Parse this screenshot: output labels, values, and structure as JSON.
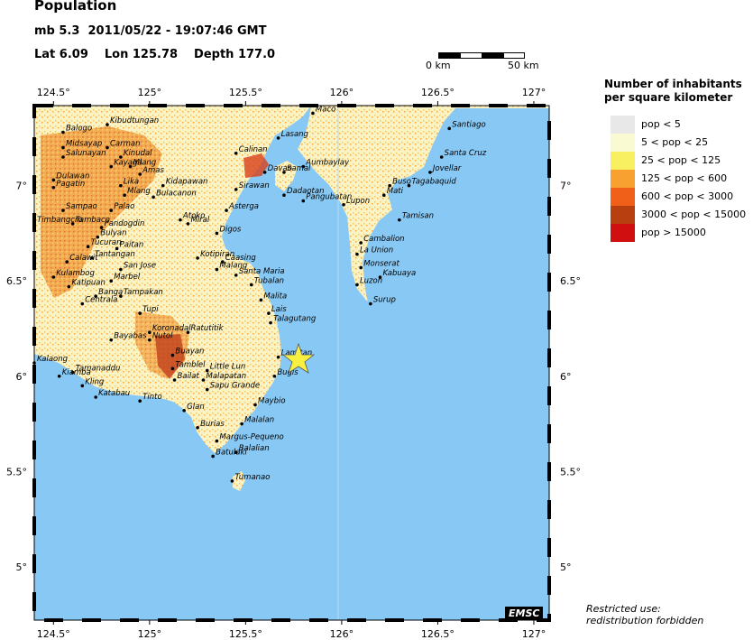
{
  "header": {
    "title": "Population",
    "magnitude": "mb 5.3",
    "datetime": "2011/05/22 - 19:07:46 GMT",
    "lat": "Lat  6.09",
    "lon": "Lon 125.78",
    "depth": "Depth 177.0"
  },
  "scale": {
    "start": "0 km",
    "end": "50 km"
  },
  "axes": {
    "lon_ticks": [
      "124.5°",
      "125°",
      "125.5°",
      "126°",
      "126.5°",
      "127°"
    ],
    "lat_ticks": [
      "7°",
      "6.5°",
      "6°",
      "5.5°",
      "5°"
    ]
  },
  "legend": {
    "title_line1": "Number of inhabitants",
    "title_line2": "per square kilometer",
    "items": [
      {
        "label": "pop < 5",
        "color": "#e8e8e8"
      },
      {
        "label": "5 < pop < 25",
        "color": "#fafad2"
      },
      {
        "label": "25 < pop < 125",
        "color": "#f8f060"
      },
      {
        "label": "125 < pop < 600",
        "color": "#f8a030"
      },
      {
        "label": "600 < pop < 3000",
        "color": "#f06018"
      },
      {
        "label": "3000 < pop < 15000",
        "color": "#b84010"
      },
      {
        "label": "pop > 15000",
        "color": "#d01010"
      }
    ]
  },
  "cities": [
    {
      "name": "Balogo",
      "lon": 124.55,
      "lat": 7.28
    },
    {
      "name": "Kibudtungan",
      "lon": 124.78,
      "lat": 7.32
    },
    {
      "name": "Midsayap",
      "lon": 124.55,
      "lat": 7.2
    },
    {
      "name": "Carman",
      "lon": 124.78,
      "lat": 7.2
    },
    {
      "name": "Salunayan",
      "lon": 124.55,
      "lat": 7.15
    },
    {
      "name": "Kinudal",
      "lon": 124.85,
      "lat": 7.15
    },
    {
      "name": "Kayaga",
      "lon": 124.8,
      "lat": 7.1
    },
    {
      "name": "Mlang",
      "lon": 124.9,
      "lat": 7.1
    },
    {
      "name": "Amas",
      "lon": 124.95,
      "lat": 7.06
    },
    {
      "name": "Calinan",
      "lon": 125.45,
      "lat": 7.17
    },
    {
      "name": "Lasang",
      "lon": 125.67,
      "lat": 7.25
    },
    {
      "name": "Maco",
      "lon": 125.85,
      "lat": 7.38
    },
    {
      "name": "Dulawan",
      "lon": 124.5,
      "lat": 7.03
    },
    {
      "name": "Pagatin",
      "lon": 124.5,
      "lat": 6.99
    },
    {
      "name": "Lika",
      "lon": 124.85,
      "lat": 7.0
    },
    {
      "name": "Kidapawan",
      "lon": 125.07,
      "lat": 7.0
    },
    {
      "name": "Mlang",
      "lon": 124.87,
      "lat": 6.95
    },
    {
      "name": "Bulacanon",
      "lon": 125.02,
      "lat": 6.94
    },
    {
      "name": "Davao",
      "lon": 125.6,
      "lat": 7.07
    },
    {
      "name": "Samal",
      "lon": 125.7,
      "lat": 7.07
    },
    {
      "name": "Aumbaylay",
      "lon": 125.8,
      "lat": 7.1
    },
    {
      "name": "Sirawan",
      "lon": 125.45,
      "lat": 6.98
    },
    {
      "name": "Dadaotan",
      "lon": 125.7,
      "lat": 6.95
    },
    {
      "name": "Pangubatan",
      "lon": 125.8,
      "lat": 6.92
    },
    {
      "name": "Lupon",
      "lon": 126.01,
      "lat": 6.9
    },
    {
      "name": "Mati",
      "lon": 126.22,
      "lat": 6.95
    },
    {
      "name": "Buso",
      "lon": 126.25,
      "lat": 7.0
    },
    {
      "name": "Tagabaquid",
      "lon": 126.35,
      "lat": 7.0
    },
    {
      "name": "Jovellar",
      "lon": 126.46,
      "lat": 7.07
    },
    {
      "name": "Santa Cruz",
      "lon": 126.52,
      "lat": 7.15
    },
    {
      "name": "Santiago",
      "lon": 126.56,
      "lat": 7.3
    },
    {
      "name": "Sampao",
      "lon": 124.55,
      "lat": 6.87
    },
    {
      "name": "Palao",
      "lon": 124.8,
      "lat": 6.87
    },
    {
      "name": "Asterga",
      "lon": 125.4,
      "lat": 6.87
    },
    {
      "name": "Timbangcro",
      "lon": 124.4,
      "lat": 6.8
    },
    {
      "name": "Tambaco",
      "lon": 124.6,
      "lat": 6.8
    },
    {
      "name": "Pandogdin",
      "lon": 124.75,
      "lat": 6.78
    },
    {
      "name": "Atoko",
      "lon": 125.16,
      "lat": 6.82
    },
    {
      "name": "Miral",
      "lon": 125.2,
      "lat": 6.8
    },
    {
      "name": "Digos",
      "lon": 125.35,
      "lat": 6.75
    },
    {
      "name": "Tamisan",
      "lon": 126.3,
      "lat": 6.82
    },
    {
      "name": "Bulyan",
      "lon": 124.73,
      "lat": 6.73
    },
    {
      "name": "Tucuran",
      "lon": 124.68,
      "lat": 6.68
    },
    {
      "name": "Paitan",
      "lon": 124.83,
      "lat": 6.67
    },
    {
      "name": "Cambalion",
      "lon": 126.1,
      "lat": 6.7
    },
    {
      "name": "La Union",
      "lon": 126.08,
      "lat": 6.64
    },
    {
      "name": "Tantangan",
      "lon": 124.7,
      "lat": 6.62
    },
    {
      "name": "Kotipiran",
      "lon": 125.25,
      "lat": 6.62
    },
    {
      "name": "Calawit",
      "lon": 124.57,
      "lat": 6.6
    },
    {
      "name": "Caasing",
      "lon": 125.38,
      "lat": 6.6
    },
    {
      "name": "Malang",
      "lon": 125.35,
      "lat": 6.56
    },
    {
      "name": "Santa Maria",
      "lon": 125.45,
      "lat": 6.53
    },
    {
      "name": "San Jose",
      "lon": 124.85,
      "lat": 6.56
    },
    {
      "name": "Monserat",
      "lon": 126.1,
      "lat": 6.57
    },
    {
      "name": "Kulambog",
      "lon": 124.5,
      "lat": 6.52
    },
    {
      "name": "Marbel",
      "lon": 124.8,
      "lat": 6.5
    },
    {
      "name": "Kabuaya",
      "lon": 126.2,
      "lat": 6.52
    },
    {
      "name": "Tubalan",
      "lon": 125.53,
      "lat": 6.48
    },
    {
      "name": "Katipuan",
      "lon": 124.58,
      "lat": 6.47
    },
    {
      "name": "Luzon",
      "lon": 126.08,
      "lat": 6.48
    },
    {
      "name": "Banga",
      "lon": 124.72,
      "lat": 6.42
    },
    {
      "name": "Tampakan",
      "lon": 124.85,
      "lat": 6.42
    },
    {
      "name": "Centrala",
      "lon": 124.65,
      "lat": 6.38
    },
    {
      "name": "Malita",
      "lon": 125.58,
      "lat": 6.4
    },
    {
      "name": "Tupi",
      "lon": 124.95,
      "lat": 6.33
    },
    {
      "name": "Surup",
      "lon": 126.15,
      "lat": 6.38
    },
    {
      "name": "Lais",
      "lon": 125.62,
      "lat": 6.33
    },
    {
      "name": "Talagutang",
      "lon": 125.63,
      "lat": 6.28
    },
    {
      "name": "Koronadal",
      "lon": 125.0,
      "lat": 6.23
    },
    {
      "name": "Ratutitik",
      "lon": 125.2,
      "lat": 6.23
    },
    {
      "name": "Nutol",
      "lon": 125.0,
      "lat": 6.19
    },
    {
      "name": "Bayabas",
      "lon": 124.8,
      "lat": 6.19
    },
    {
      "name": "Buayan",
      "lon": 125.12,
      "lat": 6.11
    },
    {
      "name": "Lamitan",
      "lon": 125.67,
      "lat": 6.1
    },
    {
      "name": "Kalaong",
      "lon": 124.4,
      "lat": 6.07
    },
    {
      "name": "Tamblel",
      "lon": 125.12,
      "lat": 6.04
    },
    {
      "name": "Little Lun",
      "lon": 125.3,
      "lat": 6.03
    },
    {
      "name": "Bugis",
      "lon": 125.65,
      "lat": 6.0
    },
    {
      "name": "Tamanaddu",
      "lon": 124.6,
      "lat": 6.02
    },
    {
      "name": "Kiamba",
      "lon": 124.53,
      "lat": 6.0
    },
    {
      "name": "Bailat",
      "lon": 125.13,
      "lat": 5.98
    },
    {
      "name": "Malapatan",
      "lon": 125.28,
      "lat": 5.98
    },
    {
      "name": "Kling",
      "lon": 124.65,
      "lat": 5.95
    },
    {
      "name": "Sapu Grande",
      "lon": 125.3,
      "lat": 5.93
    },
    {
      "name": "Katabau",
      "lon": 124.72,
      "lat": 5.89
    },
    {
      "name": "Tinto",
      "lon": 124.95,
      "lat": 5.87
    },
    {
      "name": "Maybio",
      "lon": 125.55,
      "lat": 5.85
    },
    {
      "name": "Glan",
      "lon": 125.18,
      "lat": 5.82
    },
    {
      "name": "Malalan",
      "lon": 125.48,
      "lat": 5.75
    },
    {
      "name": "Burias",
      "lon": 125.25,
      "lat": 5.73
    },
    {
      "name": "Margus-Pequeno",
      "lon": 125.35,
      "lat": 5.66
    },
    {
      "name": "Batulaki",
      "lon": 125.33,
      "lat": 5.58
    },
    {
      "name": "Balalian",
      "lon": 125.45,
      "lat": 5.6
    },
    {
      "name": "Tumanao",
      "lon": 125.43,
      "lat": 5.45
    }
  ]
}
